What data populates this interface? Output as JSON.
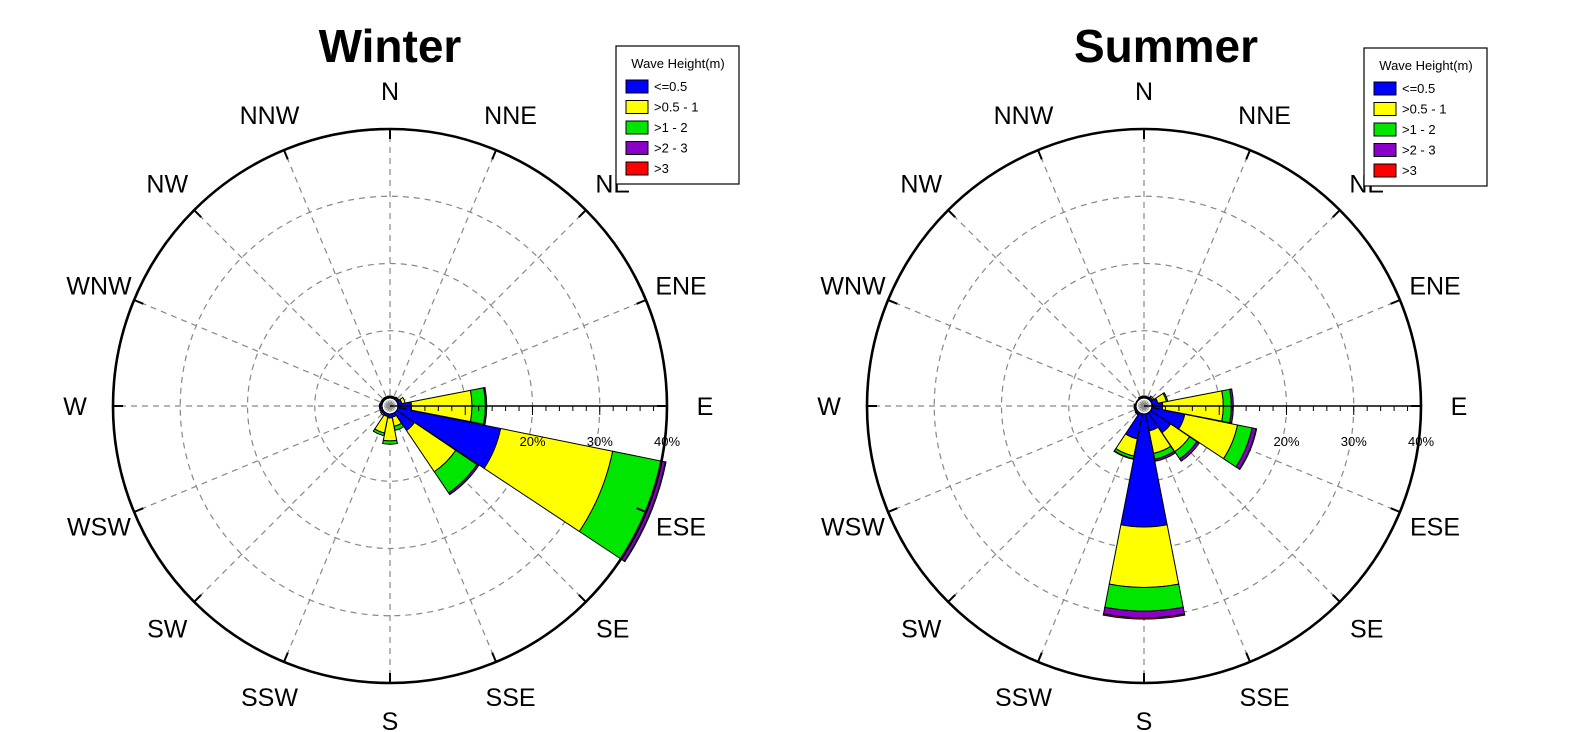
{
  "chart_data": [
    {
      "type": "windrose",
      "title": "Winter",
      "directions": [
        "N",
        "NNE",
        "NE",
        "ENE",
        "E",
        "ESE",
        "SE",
        "SSE",
        "S",
        "SSW",
        "SW",
        "WSW",
        "W",
        "WNW",
        "NW",
        "NNW"
      ],
      "radial_ticks": [
        "20%",
        "30%",
        "40%"
      ],
      "rmax": 40,
      "legend": {
        "title": "Wave Height(m)",
        "items": [
          {
            "label": "<=0.5",
            "color": "#0000ff"
          },
          {
            "label": ">0.5 - 1",
            "color": "#ffff00"
          },
          {
            "label": ">1 - 2",
            "color": "#00e600"
          },
          {
            "label": ">2 - 3",
            "color": "#8a00c8"
          },
          {
            "label": ">3",
            "color": "#ff0000"
          }
        ]
      },
      "series": [
        {
          "name": "<=0.5",
          "values": [
            0.2,
            0.2,
            0.3,
            0.6,
            2.0,
            15.6,
            3.2,
            0.5,
            0.6,
            0.4,
            0.3,
            0.3,
            0.3,
            0.2,
            0.2,
            0.2
          ]
        },
        {
          "name": ">0.5 - 1",
          "values": [
            0.1,
            0.1,
            0.1,
            0.5,
            9.0,
            17.0,
            7.4,
            1.4,
            3.4,
            2.5,
            0.2,
            0.1,
            0.1,
            0.1,
            0.1,
            0.1
          ]
        },
        {
          "name": ">1 - 2",
          "values": [
            0.0,
            0.0,
            0.0,
            0.0,
            2.0,
            7.4,
            3.8,
            0.6,
            0.5,
            0.4,
            0.0,
            0.0,
            0.0,
            0.0,
            0.0,
            0.0
          ]
        },
        {
          "name": ">2 - 3",
          "values": [
            0,
            0,
            0,
            0,
            0.2,
            0.6,
            0.3,
            0,
            0,
            0,
            0,
            0,
            0,
            0,
            0,
            0
          ]
        },
        {
          "name": ">3",
          "values": [
            0,
            0,
            0,
            0,
            0,
            0.1,
            0,
            0,
            0,
            0,
            0,
            0,
            0,
            0,
            0,
            0
          ]
        }
      ]
    },
    {
      "type": "windrose",
      "title": "Summer",
      "directions": [
        "N",
        "NNE",
        "NE",
        "ENE",
        "E",
        "ESE",
        "SE",
        "SSE",
        "S",
        "SSW",
        "SW",
        "WSW",
        "W",
        "WNW",
        "NW",
        "NNW"
      ],
      "radial_ticks": [
        "20%",
        "30%",
        "40%"
      ],
      "rmax": 40,
      "legend": {
        "title": "Wave Height(m)",
        "items": [
          {
            "label": "<=0.5",
            "color": "#0000ff"
          },
          {
            "label": ">0.5 - 1",
            "color": "#ffff00"
          },
          {
            "label": ">1 - 2",
            "color": "#00e600"
          },
          {
            "label": ">2 - 3",
            "color": "#8a00c8"
          },
          {
            "label": ">3",
            "color": "#ff0000"
          }
        ]
      },
      "series": [
        {
          "name": "<=0.5",
          "values": [
            0.2,
            0.2,
            0.4,
            0.9,
            1.6,
            5.0,
            3.6,
            2.6,
            16.8,
            3.8,
            0.3,
            0.2,
            0.2,
            0.1,
            0.1,
            0.2
          ]
        },
        {
          "name": ">0.5 - 1",
          "values": [
            0.1,
            0.1,
            0.2,
            1.3,
            9.0,
            8.0,
            3.4,
            3.4,
            9.0,
            2.6,
            0.1,
            0.1,
            0.1,
            0.0,
            0.0,
            0.1
          ]
        },
        {
          "name": ">1 - 2",
          "values": [
            0,
            0,
            0,
            0.2,
            1.2,
            2.2,
            1.3,
            0.9,
            3.5,
            0.4,
            0,
            0,
            0,
            0,
            0,
            0
          ]
        },
        {
          "name": ">2 - 3",
          "values": [
            0,
            0,
            0,
            0,
            0.3,
            0.6,
            0.4,
            0.3,
            1.0,
            0.1,
            0,
            0,
            0,
            0,
            0,
            0
          ]
        },
        {
          "name": ">3",
          "values": [
            0,
            0,
            0,
            0,
            0,
            0.1,
            0,
            0,
            0.2,
            0,
            0,
            0,
            0,
            0,
            0,
            0
          ]
        }
      ]
    }
  ]
}
